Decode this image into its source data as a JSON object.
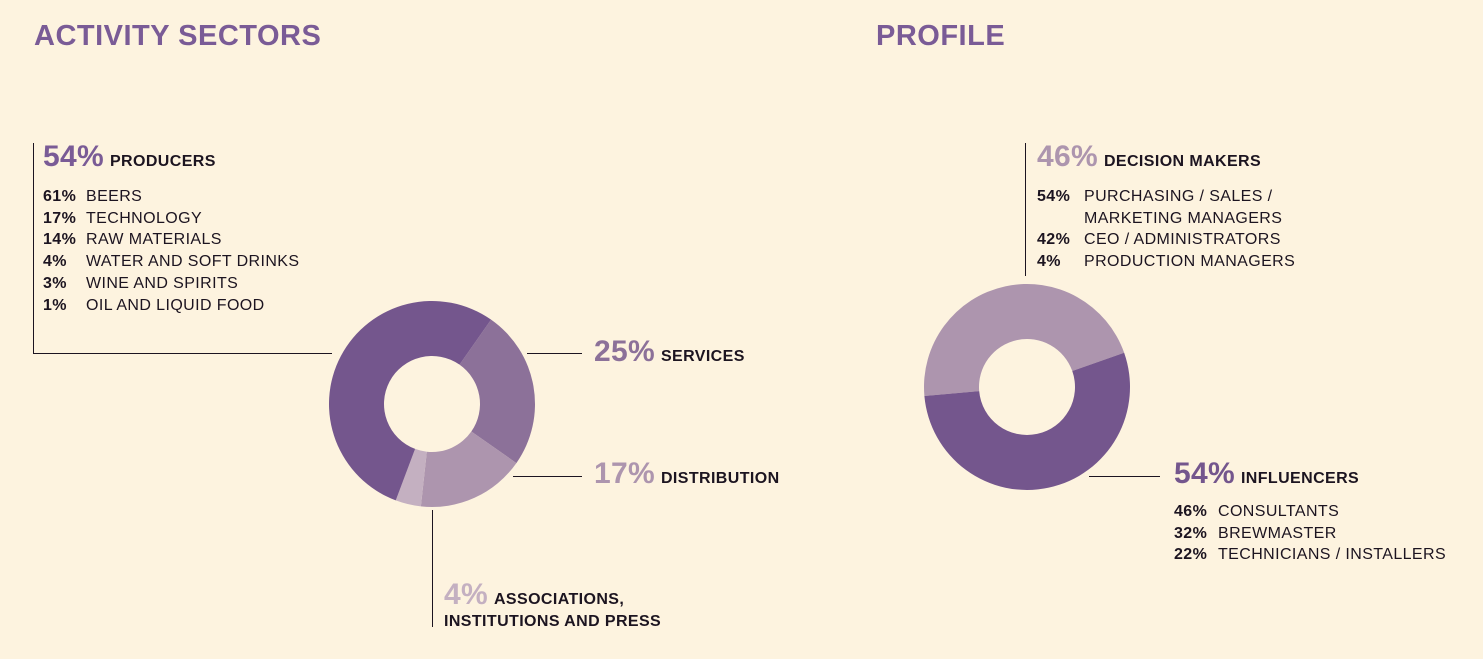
{
  "colors": {
    "background": "#fdf3df",
    "title": "#7a5b96",
    "dark_purple": "#74568d",
    "mid_purple": "#8c7199",
    "light_purple": "#ad95ae",
    "pale_purple": "#c4b0c1",
    "text": "#1c1420"
  },
  "activity": {
    "title": "ACTIVITY SECTORS",
    "producers": {
      "pct": "54%",
      "label": "PRODUCERS",
      "items": [
        {
          "pct": "61%",
          "text": "BEERS"
        },
        {
          "pct": "17%",
          "text": "TECHNOLOGY"
        },
        {
          "pct": "14%",
          "text": "RAW MATERIALS"
        },
        {
          "pct": "4%",
          "text": "WATER AND SOFT DRINKS"
        },
        {
          "pct": "3%",
          "text": "WINE AND SPIRITS"
        },
        {
          "pct": "1%",
          "text": "OIL AND LIQUID FOOD"
        }
      ]
    },
    "services": {
      "pct": "25%",
      "label": "SERVICES"
    },
    "distribution": {
      "pct": "17%",
      "label": "DISTRIBUTION"
    },
    "associations": {
      "pct": "4%",
      "label_line1": "ASSOCIATIONS,",
      "label_line2": "INSTITUTIONS AND PRESS"
    }
  },
  "profile": {
    "title": "PROFILE",
    "decision": {
      "pct": "46%",
      "label": "DECISION MAKERS",
      "items": [
        {
          "pct": "54%",
          "lines": [
            "PURCHASING / SALES /",
            "MARKETING MANAGERS"
          ]
        },
        {
          "pct": "42%",
          "lines": [
            "CEO / ADMINISTRATORS"
          ]
        },
        {
          "pct": "4%",
          "lines": [
            "PRODUCTION MANAGERS"
          ]
        }
      ]
    },
    "influencers": {
      "pct": "54%",
      "label": "INFLUENCERS",
      "items": [
        {
          "pct": "46%",
          "text": "CONSULTANTS"
        },
        {
          "pct": "32%",
          "text": "BREWMASTER"
        },
        {
          "pct": "22%",
          "text": "TECHNICIANS / INSTALLERS"
        }
      ]
    }
  },
  "chart_data": [
    {
      "type": "pie",
      "variant": "donut",
      "title": "ACTIVITY SECTORS",
      "categories": [
        "PRODUCERS",
        "SERVICES",
        "DISTRIBUTION",
        "ASSOCIATIONS, INSTITUTIONS AND PRESS"
      ],
      "values": [
        54,
        25,
        17,
        4
      ],
      "colors": [
        "#74568d",
        "#8c7199",
        "#ad95ae",
        "#c4b0c1"
      ],
      "start_angle_deg": -55
    },
    {
      "type": "pie",
      "variant": "donut",
      "title": "PROFILE",
      "categories": [
        "INFLUENCERS",
        "DECISION MAKERS"
      ],
      "values": [
        54,
        46
      ],
      "colors": [
        "#74568d",
        "#ad95ae"
      ],
      "start_angle_deg": -90,
      "start_with": "DECISION MAKERS"
    }
  ]
}
